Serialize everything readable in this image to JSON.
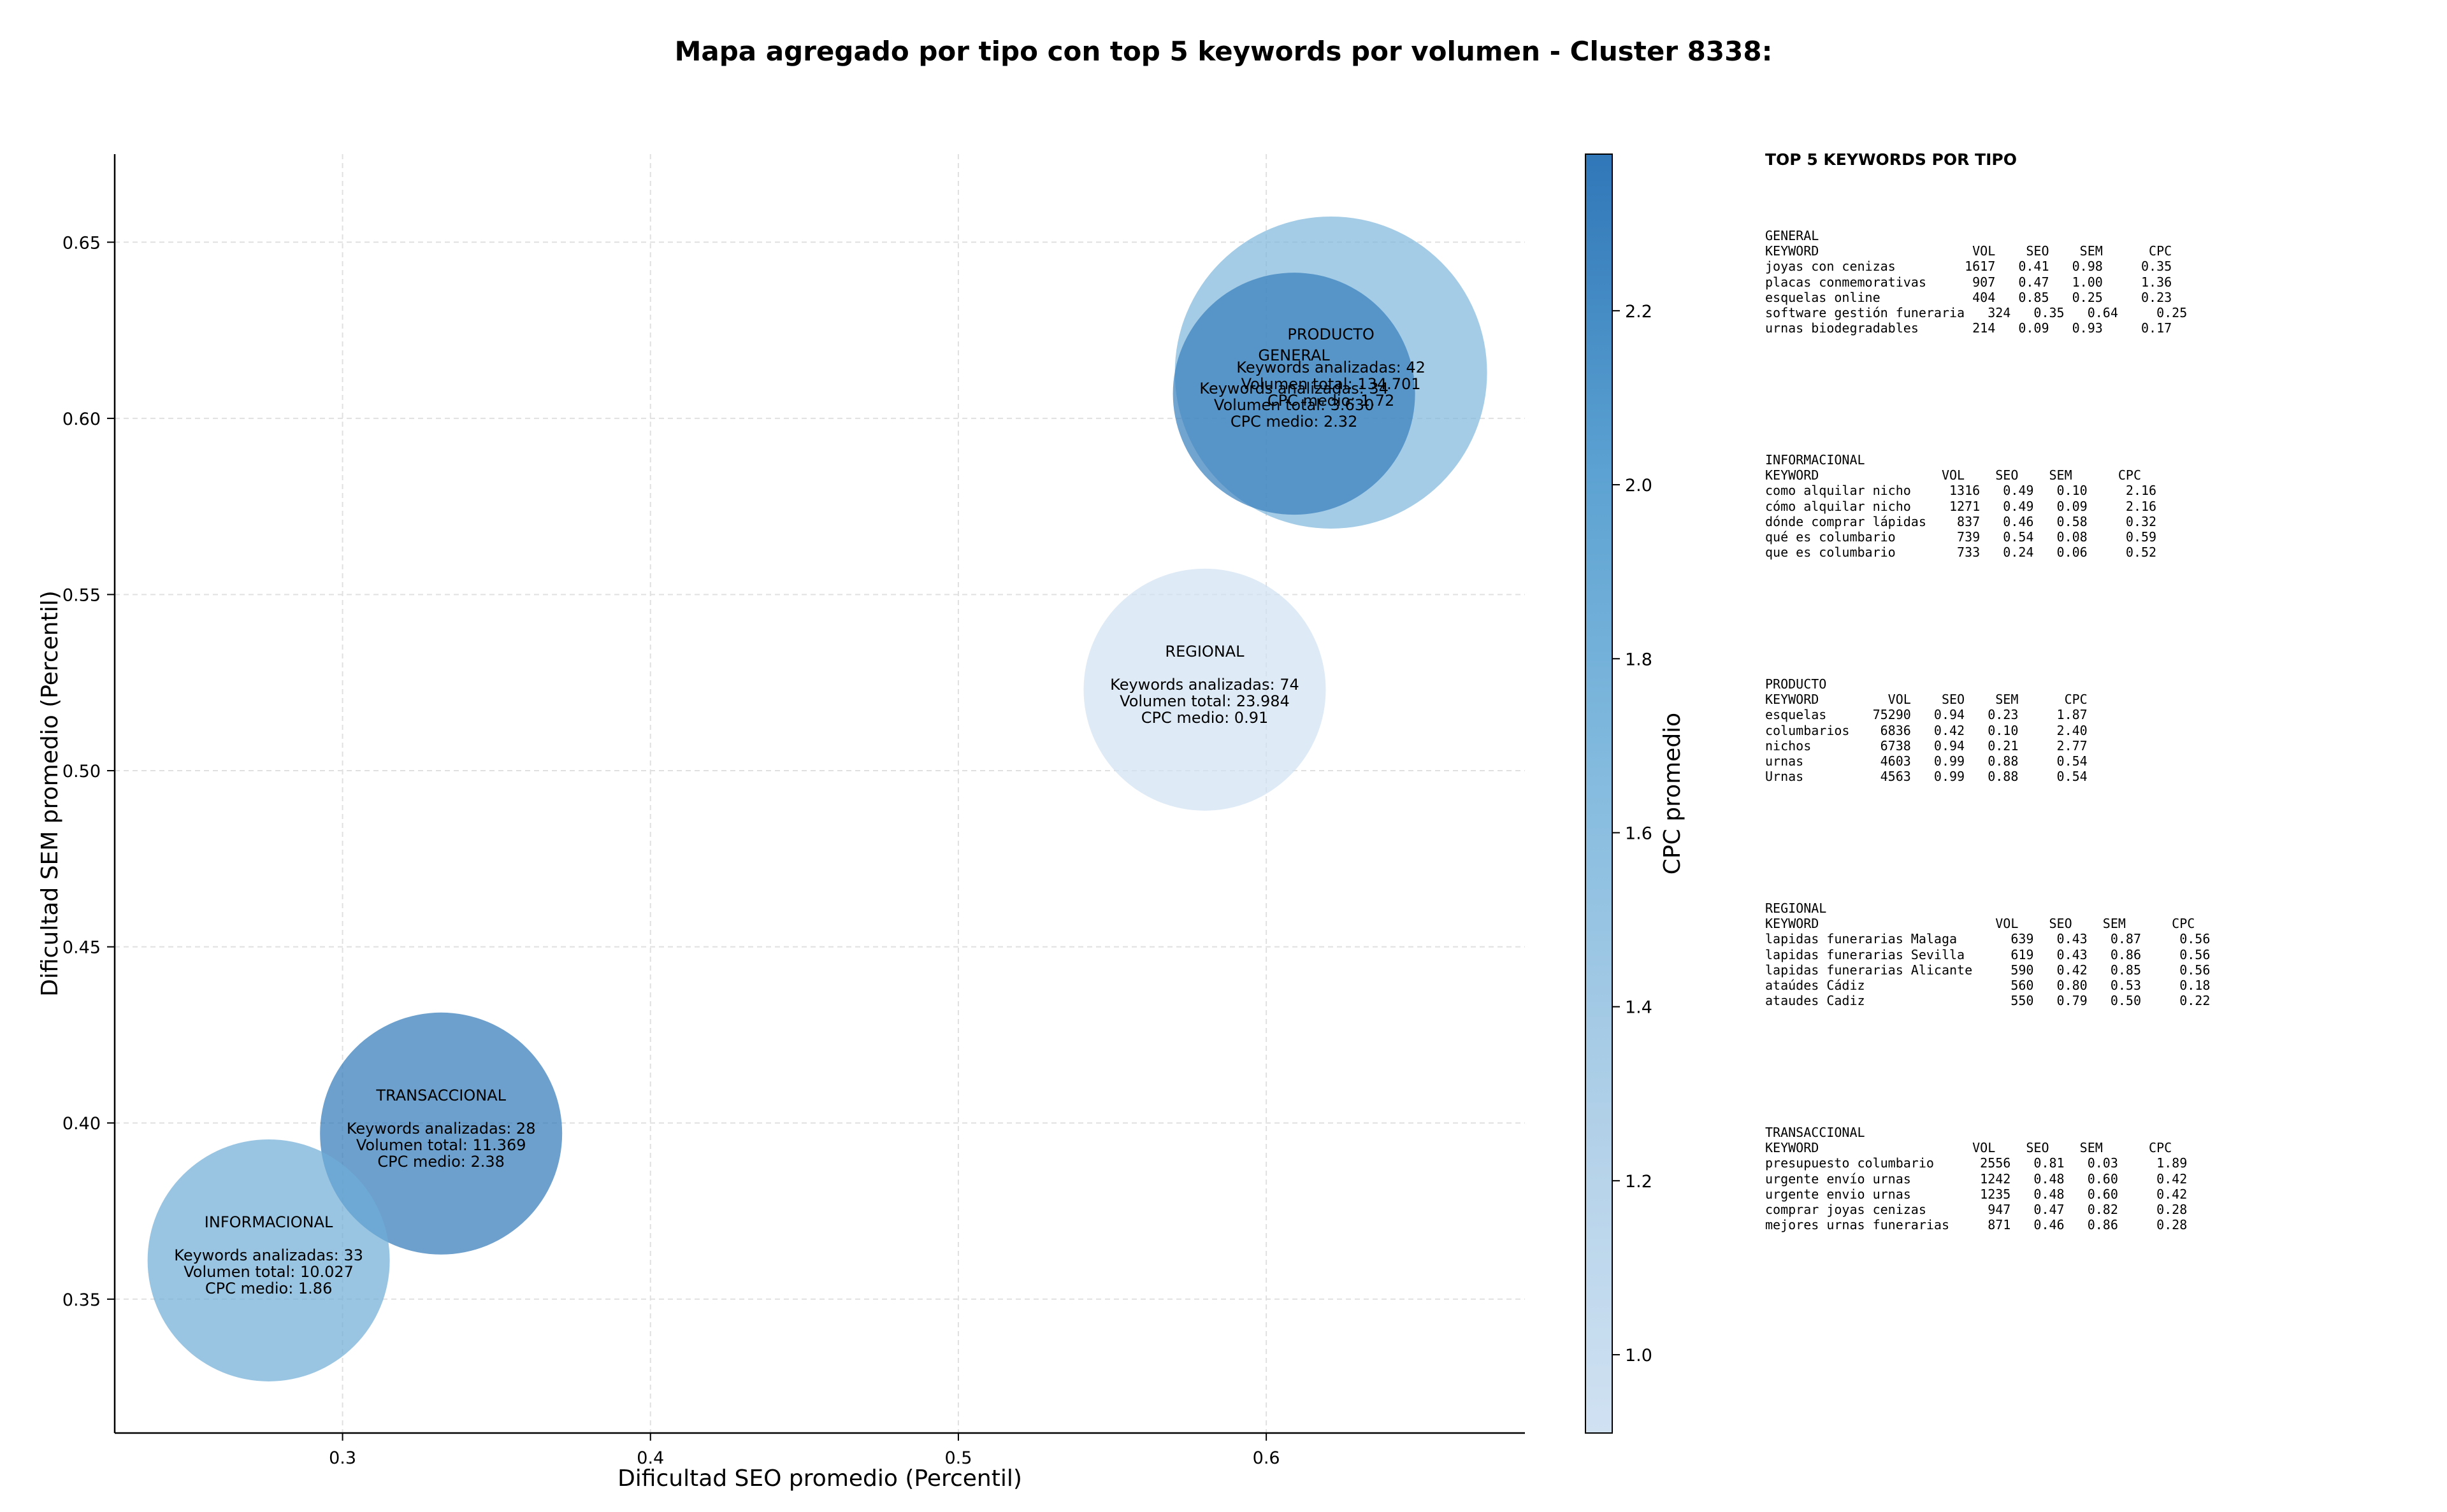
{
  "title": "Mapa agregado por tipo con top 5 keywords por volumen - Cluster 8338:",
  "chart_data": {
    "type": "scatter",
    "xlabel": "Dificultad SEO promedio (Percentil)",
    "ylabel": "Dificultad SEM promedio (Percentil)",
    "xlim": [
      0.226,
      0.684
    ],
    "ylim": [
      0.312,
      0.675
    ],
    "xticks": [
      0.3,
      0.4,
      0.5,
      0.6
    ],
    "xtick_labels": [
      "0.3",
      "0.4",
      "0.5",
      "0.6"
    ],
    "yticks": [
      0.35,
      0.4,
      0.45,
      0.5,
      0.55,
      0.6,
      0.65
    ],
    "ytick_labels": [
      "0.35",
      "0.40",
      "0.45",
      "0.50",
      "0.55",
      "0.60",
      "0.65"
    ],
    "grid": true,
    "colorbar": {
      "label": "CPC promedio",
      "min": 0.91,
      "max": 2.38,
      "ticks": [
        1.0,
        1.2,
        1.4,
        1.6,
        1.8,
        2.0,
        2.2
      ],
      "tick_labels": [
        "1.0",
        "1.2",
        "1.4",
        "1.6",
        "1.8",
        "2.0",
        "2.2"
      ],
      "colormap": "Blues",
      "color_low": "#d0e1f2",
      "color_high": "#2f77b8"
    },
    "points": [
      {
        "name": "PRODUCTO",
        "x": 0.621,
        "y": 0.613,
        "keywords": 42,
        "volume": 134701,
        "cpc": 1.72,
        "lines": [
          "Keywords analizadas: 42",
          "Volumen total: 134.701",
          "CPC medio: 1.72"
        ]
      },
      {
        "name": "GENERAL",
        "x": 0.609,
        "y": 0.607,
        "keywords": 34,
        "volume": 3630,
        "cpc": 2.32,
        "lines": [
          "Keywords analizadas: 34",
          "Volumen total: 3.630",
          "CPC medio: 2.32"
        ]
      },
      {
        "name": "REGIONAL",
        "x": 0.58,
        "y": 0.523,
        "keywords": 74,
        "volume": 23984,
        "cpc": 0.91,
        "lines": [
          "Keywords analizadas: 74",
          "Volumen total: 23.984",
          "CPC medio: 0.91"
        ]
      },
      {
        "name": "TRANSACCIONAL",
        "x": 0.332,
        "y": 0.397,
        "keywords": 28,
        "volume": 11369,
        "cpc": 2.38,
        "lines": [
          "Keywords analizadas: 28",
          "Volumen total: 11.369",
          "CPC medio: 2.38"
        ]
      },
      {
        "name": "INFORMACIONAL",
        "x": 0.276,
        "y": 0.361,
        "keywords": 33,
        "volume": 10027,
        "cpc": 1.86,
        "lines": [
          "Keywords analizadas: 33",
          "Volumen total: 10.027",
          "CPC medio: 1.86"
        ]
      }
    ]
  },
  "top_keywords": {
    "heading": "TOP 5 KEYWORDS POR TIPO",
    "groups": [
      {
        "name": "GENERAL",
        "text": "KEYWORD                    VOL    SEO    SEM      CPC\njoyas con cenizas         1617   0.41   0.98     0.35\nplacas conmemorativas      907   0.47   1.00     1.36\nesquelas online            404   0.85   0.25     0.23\nsoftware gestión funeraria   324   0.35   0.64     0.25\nurnas biodegradables       214   0.09   0.93     0.17"
      },
      {
        "name": "INFORMACIONAL",
        "text": "KEYWORD                VOL    SEO    SEM      CPC\ncomo alquilar nicho     1316   0.49   0.10     2.16\ncómo alquilar nicho     1271   0.49   0.09     2.16\ndónde comprar lápidas    837   0.46   0.58     0.32\nqué es columbario        739   0.54   0.08     0.59\nque es columbario        733   0.24   0.06     0.52"
      },
      {
        "name": "PRODUCTO",
        "text": "KEYWORD         VOL    SEO    SEM      CPC\nesquelas      75290   0.94   0.23     1.87\ncolumbarios    6836   0.42   0.10     2.40\nnichos         6738   0.94   0.21     2.77\nurnas          4603   0.99   0.88     0.54\nUrnas          4563   0.99   0.88     0.54"
      },
      {
        "name": "REGIONAL",
        "text": "KEYWORD                       VOL    SEO    SEM      CPC\nlapidas funerarias Malaga       639   0.43   0.87     0.56\nlapidas funerarias Sevilla      619   0.43   0.86     0.56\nlapidas funerarias Alicante     590   0.42   0.85     0.56\nataúdes Cádiz                   560   0.80   0.53     0.18\nataudes Cadiz                   550   0.79   0.50     0.22"
      },
      {
        "name": "TRANSACCIONAL",
        "text": "KEYWORD                    VOL    SEO    SEM      CPC\npresupuesto columbario      2556   0.81   0.03     1.89\nurgente envío urnas         1242   0.48   0.60     0.42\nurgente envio urnas         1235   0.48   0.60     0.42\ncomprar joyas cenizas        947   0.47   0.82     0.28\nmejores urnas funerarias     871   0.46   0.86     0.28"
      }
    ]
  }
}
